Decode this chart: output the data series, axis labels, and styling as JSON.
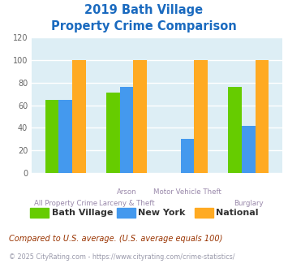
{
  "title_line1": "2019 Bath Village",
  "title_line2": "Property Crime Comparison",
  "series": {
    "Bath Village": [
      65,
      71,
      0,
      76
    ],
    "New York": [
      65,
      76,
      30,
      42
    ],
    "National": [
      100,
      100,
      100,
      100
    ]
  },
  "colors": {
    "Bath Village": "#66cc00",
    "New York": "#4499ee",
    "National": "#ffaa22"
  },
  "ylim": [
    0,
    120
  ],
  "yticks": [
    0,
    20,
    40,
    60,
    80,
    100,
    120
  ],
  "plot_bg": "#ddeef5",
  "grid_color": "#ffffff",
  "title_color": "#1a6abf",
  "label_color": "#9988aa",
  "top_labels": [
    "",
    "Arson",
    "Motor Vehicle Theft",
    ""
  ],
  "bot_labels": [
    "All Property Crime",
    "Larceny & Theft",
    "",
    "Burglary"
  ],
  "footnote1": "Compared to U.S. average. (U.S. average equals 100)",
  "footnote2": "© 2025 CityRating.com - https://www.cityrating.com/crime-statistics/",
  "footnote1_color": "#993300",
  "footnote2_color": "#9999aa"
}
